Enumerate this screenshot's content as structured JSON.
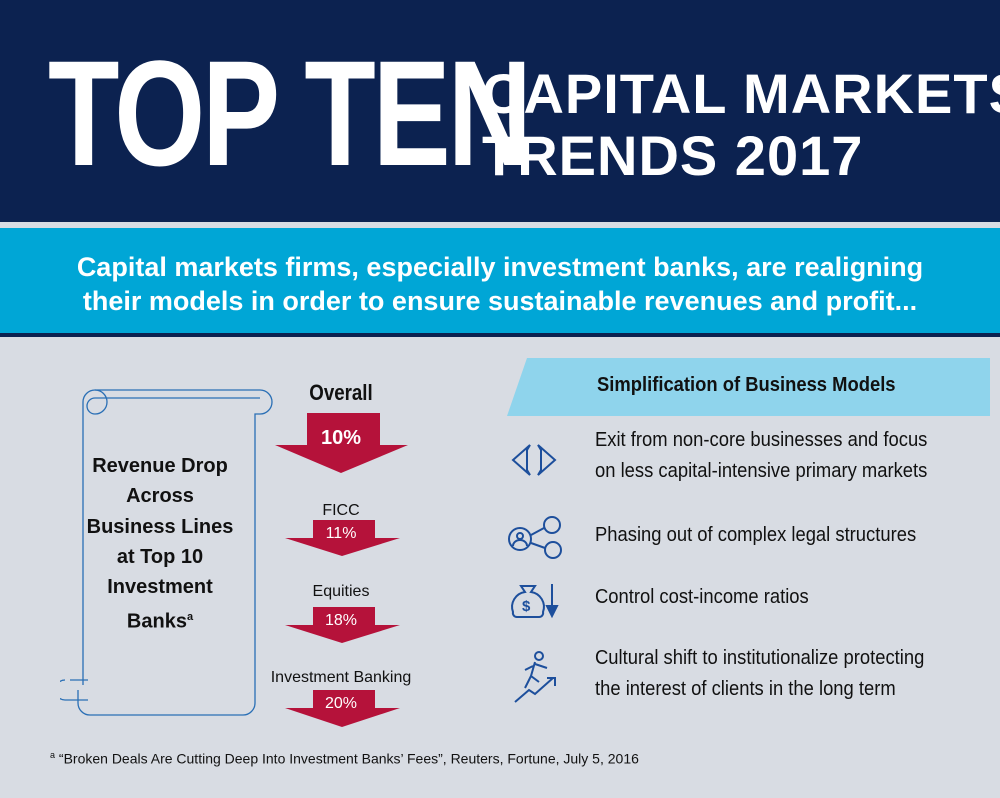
{
  "header": {
    "title_big": "TOP TEN",
    "title_line1": "CAPITAL MARKETS",
    "title_line2": "TRENDS 2017"
  },
  "tagline": {
    "line1": "Capital markets firms, especially investment banks, are realigning",
    "line2": "their models in order to ensure sustainable revenues and profit..."
  },
  "scroll": {
    "text": "Revenue Drop Across Business Lines at Top 10 Investment Banks",
    "superscript": "a"
  },
  "drops": [
    {
      "label": "Overall",
      "value": "10%"
    },
    {
      "label": "FICC",
      "value": "11%"
    },
    {
      "label": "Equities",
      "value": "18%"
    },
    {
      "label": "Investment Banking",
      "value": "20%"
    }
  ],
  "simplification": {
    "title": "Simplification of Business Models",
    "items": [
      {
        "icon": "split-arrows-icon",
        "line1": "Exit from non-core businesses and focus",
        "line2": "on less capital-intensive primary markets"
      },
      {
        "icon": "people-network-icon",
        "line1": "Phasing out of complex legal structures",
        "line2": ""
      },
      {
        "icon": "money-bag-down-icon",
        "line1": "Control cost-income ratios",
        "line2": ""
      },
      {
        "icon": "climbing-person-icon",
        "line1": "Cultural shift to institutionalize protecting",
        "line2": "the interest of clients in the long term"
      }
    ]
  },
  "footnote": {
    "marker": "a",
    "text": "“Broken Deals Are Cutting Deep Into Investment Banks’ Fees”, Reuters, Fortune, July 5, 2016"
  },
  "colors": {
    "navy": "#0c2250",
    "cyan": "#00a6d6",
    "red": "#b5123a",
    "banner": "#8fd4ec",
    "background": "#d8dce3"
  }
}
